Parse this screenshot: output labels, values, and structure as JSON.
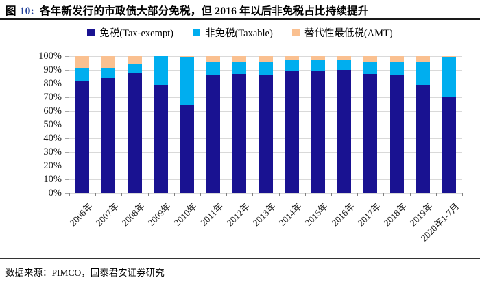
{
  "header": {
    "figure_prefix": "图",
    "figure_number": "10:",
    "title": "各年新发行的市政债大部分免税，但 2016 年以后非免税占比持续提升"
  },
  "legend": [
    {
      "label": "免税(Tax-exempt)",
      "color": "#191291"
    },
    {
      "label": "非免税(Taxable)",
      "color": "#00aeef"
    },
    {
      "label": "替代性最低税(AMT)",
      "color": "#fac090"
    }
  ],
  "chart_data": {
    "type": "bar",
    "stacked": true,
    "title": "各年新发行的市政债大部分免税，但 2016 年以后非免税占比持续提升",
    "categories": [
      "2006年",
      "2007年",
      "2008年",
      "2009年",
      "2010年",
      "2011年",
      "2012年",
      "2013年",
      "2014年",
      "2015年",
      "2016年",
      "2017年",
      "2018年",
      "2019年",
      "2020年1-7月"
    ],
    "series": [
      {
        "name": "免税(Tax-exempt)",
        "color": "#191291",
        "values": [
          82,
          84,
          88,
          79,
          64,
          86,
          87,
          86,
          89,
          89,
          90,
          87,
          86,
          79,
          70
        ]
      },
      {
        "name": "非免税(Taxable)",
        "color": "#00aeef",
        "values": [
          9,
          7,
          6,
          21,
          35,
          10,
          9,
          10,
          8,
          8,
          7,
          9,
          10,
          17,
          29
        ]
      },
      {
        "name": "替代性最低税(AMT)",
        "color": "#fac090",
        "values": [
          9,
          9,
          6,
          0,
          1,
          4,
          4,
          4,
          3,
          3,
          3,
          4,
          4,
          4,
          1
        ]
      }
    ],
    "xlabel": "",
    "ylabel": "",
    "ylim": [
      0,
      100
    ],
    "ytick_step": 10,
    "ytick_suffix": "%",
    "grid": true,
    "legend_position": "top",
    "gridline_color": "#d9d9d9"
  },
  "footer": {
    "source": "数据来源：PIMCO，国泰君安证券研究"
  }
}
